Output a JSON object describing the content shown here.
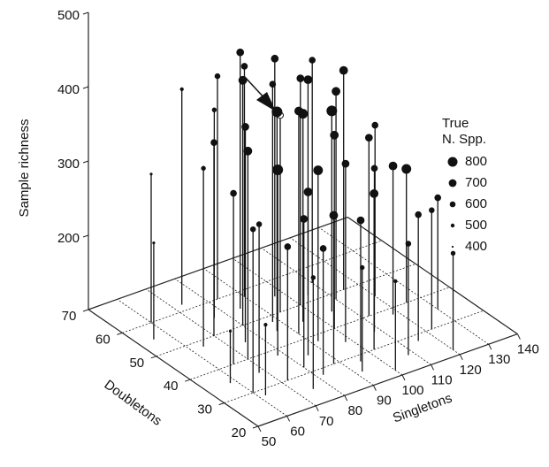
{
  "chart_data": {
    "type": "scatter3d",
    "x_label": "Singletons",
    "y_label": "Doubletons",
    "z_label": "Sample richness",
    "xlim": [
      50,
      140
    ],
    "ylim": [
      20,
      70
    ],
    "zlim": [
      100,
      500
    ],
    "xticks": [
      50,
      60,
      70,
      80,
      90,
      100,
      110,
      120,
      130,
      140
    ],
    "yticks": [
      20,
      30,
      40,
      50,
      60,
      70
    ],
    "zticks": [
      200,
      300,
      400,
      500
    ],
    "legend_title": [
      "True",
      "N. Spp."
    ],
    "legend_sizes": [
      800,
      700,
      600,
      500,
      400
    ],
    "open_point": 0,
    "color": "#111111",
    "x": [
      93,
      60,
      62,
      58,
      70,
      75,
      80,
      85,
      88,
      90,
      95,
      100,
      105,
      110,
      115,
      120,
      125,
      130,
      100,
      98,
      92,
      85,
      80,
      78,
      72,
      68,
      65,
      75,
      82,
      88,
      95,
      102,
      108,
      112,
      118,
      122,
      105,
      110,
      97,
      90,
      83,
      76,
      70,
      64,
      86,
      92,
      100,
      108,
      115,
      120,
      73,
      60,
      55
    ],
    "y": [
      50,
      30,
      28,
      35,
      40,
      45,
      50,
      55,
      48,
      42,
      45,
      50,
      52,
      55,
      50,
      45,
      40,
      35,
      40,
      35,
      38,
      35,
      32,
      38,
      30,
      35,
      40,
      25,
      28,
      30,
      28,
      30,
      35,
      40,
      38,
      30,
      45,
      48,
      55,
      58,
      60,
      55,
      50,
      48,
      45,
      25,
      22,
      25,
      28,
      22,
      62,
      60,
      55
    ],
    "z": [
      365,
      320,
      195,
      170,
      380,
      390,
      430,
      445,
      420,
      400,
      380,
      405,
      390,
      400,
      395,
      330,
      280,
      250,
      360,
      340,
      330,
      320,
      300,
      350,
      280,
      300,
      330,
      250,
      270,
      300,
      290,
      310,
      320,
      340,
      300,
      260,
      370,
      380,
      420,
      410,
      400,
      380,
      360,
      340,
      395,
      240,
      220,
      250,
      270,
      230,
      390,
      300,
      230
    ],
    "sizes": [
      500,
      550,
      450,
      400,
      700,
      650,
      700,
      650,
      600,
      700,
      750,
      650,
      700,
      600,
      700,
      600,
      750,
      600,
      700,
      650,
      750,
      700,
      650,
      800,
      600,
      550,
      600,
      500,
      600,
      700,
      650,
      700,
      600,
      650,
      700,
      550,
      800,
      700,
      650,
      600,
      550,
      500,
      600,
      500,
      800,
      500,
      450,
      550,
      600,
      500,
      450,
      400,
      400
    ]
  }
}
